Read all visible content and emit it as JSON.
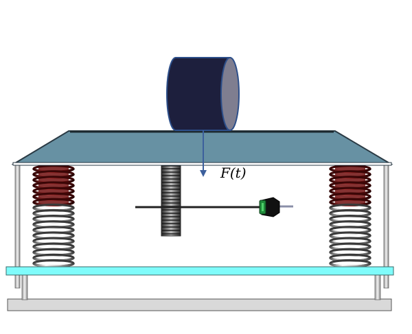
{
  "labels": {
    "force": "F(t)"
  },
  "colors": {
    "platform_top": "#6791a3",
    "platform_edge": "#2a3a44",
    "cylinder_body": "#1d1f3d",
    "cylinder_face": "#7f7e90",
    "cylinder_outline": "#2d4f8a",
    "force_arrow": "#3c5f9c",
    "base_plate": "#7ffcfb",
    "ground_slab": "#d9d9d9",
    "coil_red": "#8a1414",
    "coil_gray": "#8c8c8c",
    "sensor_green": "#1f8a3a"
  },
  "icons": {
    "mass": "cylinder-mass-icon",
    "sensor": "sensor-probe-icon",
    "gear": "gear-rack-icon"
  }
}
